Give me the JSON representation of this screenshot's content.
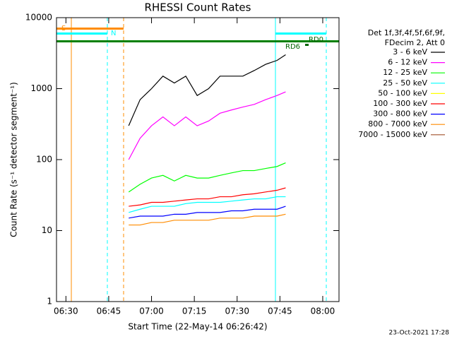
{
  "chart_data": {
    "type": "line",
    "title": "RHESSI Count Rates",
    "x_label": "Start Time (22-May-14 06:26:42)",
    "y_label": "Count Rate (s⁻¹ detector segment⁻¹)",
    "legend_header": [
      "Det 1f,3f,4f,5f,6f,9f,",
      "FDecim 2, Att 0"
    ],
    "footer": "23-Oct-2021 17:28",
    "annotations": [
      "S",
      "N",
      "RD0",
      "RD6"
    ],
    "log_y": true,
    "x": [
      52,
      56,
      60,
      64,
      68,
      72,
      76,
      80,
      84,
      88,
      92,
      96,
      100,
      104,
      107
    ],
    "xlim": [
      26.7,
      125.7
    ],
    "xticks": [
      {
        "value": 30,
        "label": "06:30"
      },
      {
        "value": 45,
        "label": "06:45"
      },
      {
        "value": 60,
        "label": "07:00"
      },
      {
        "value": 75,
        "label": "07:15"
      },
      {
        "value": 90,
        "label": "07:30"
      },
      {
        "value": 105,
        "label": "07:45"
      },
      {
        "value": 120,
        "label": "08:00"
      }
    ],
    "ylim": [
      1,
      10000
    ],
    "yticks": [
      1,
      10,
      100,
      1000,
      10000
    ],
    "series": [
      {
        "name": "3 - 6 keV",
        "color": "#000000",
        "values": [
          300,
          700,
          1000,
          1500,
          1200,
          1500,
          800,
          1000,
          1500,
          1500,
          1500,
          1800,
          2200,
          2500,
          3000
        ]
      },
      {
        "name": "6 - 12 keV",
        "color": "#ff00ff",
        "values": [
          100,
          200,
          300,
          400,
          300,
          400,
          300,
          350,
          450,
          500,
          550,
          600,
          700,
          800,
          900
        ]
      },
      {
        "name": "12 - 25 keV",
        "color": "#00ff00",
        "values": [
          35,
          45,
          55,
          60,
          50,
          60,
          55,
          55,
          60,
          65,
          70,
          70,
          75,
          80,
          90
        ]
      },
      {
        "name": "25 - 50 keV",
        "color": "#00ffff",
        "values": [
          18,
          20,
          22,
          22,
          22,
          24,
          25,
          25,
          25,
          26,
          27,
          28,
          28,
          30,
          30
        ]
      },
      {
        "name": "50 - 100 keV",
        "color": "#ffff00",
        "values": [
          null,
          null,
          null,
          null,
          null,
          null,
          null,
          null,
          null,
          null,
          null,
          null,
          null,
          null,
          null
        ]
      },
      {
        "name": "100 - 300 keV",
        "color": "#ff0000",
        "values": [
          22,
          23,
          25,
          25,
          26,
          27,
          28,
          28,
          30,
          30,
          32,
          33,
          35,
          37,
          40
        ]
      },
      {
        "name": "300 - 800 keV",
        "color": "#0000ff",
        "values": [
          15,
          16,
          16,
          16,
          17,
          17,
          18,
          18,
          18,
          19,
          19,
          20,
          20,
          20,
          22
        ]
      },
      {
        "name": "800 - 7000 keV",
        "color": "#ff8c00",
        "values": [
          12,
          12,
          13,
          13,
          14,
          14,
          14,
          14,
          15,
          15,
          15,
          16,
          16,
          16,
          17
        ]
      },
      {
        "name": "7000 - 15000 keV",
        "color": "#a0522d",
        "values": [
          null,
          null,
          null,
          null,
          null,
          null,
          null,
          null,
          null,
          null,
          null,
          null,
          null,
          null,
          null
        ]
      }
    ]
  }
}
